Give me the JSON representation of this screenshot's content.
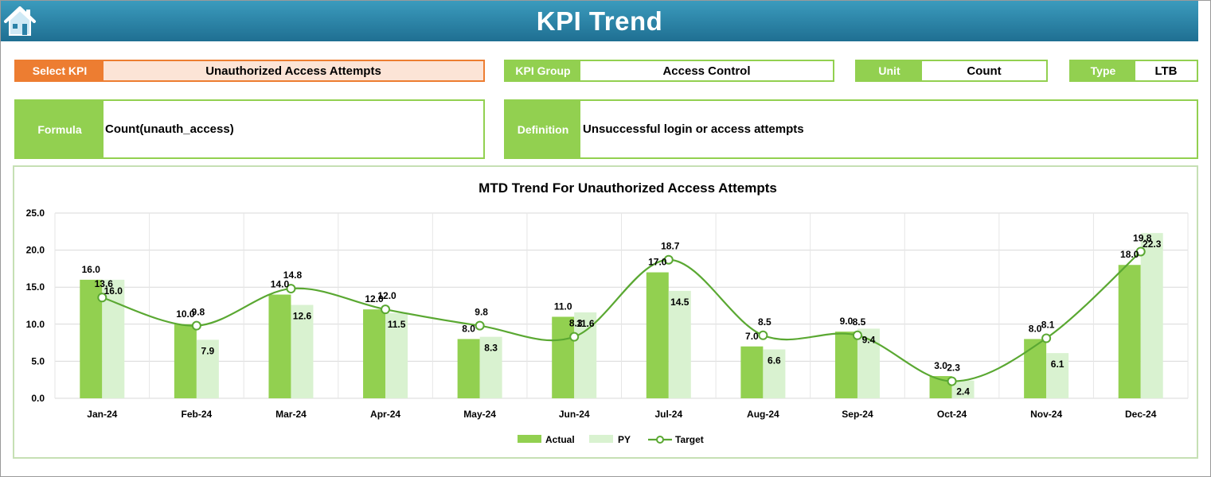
{
  "header": {
    "title": "KPI Trend",
    "home_icon": "home-icon"
  },
  "selectors": {
    "select_kpi_label": "Select KPI",
    "select_kpi_value": "Unauthorized Access Attempts",
    "kpi_group_label": "KPI Group",
    "kpi_group_value": "Access Control",
    "unit_label": "Unit",
    "unit_value": "Count",
    "type_label": "Type",
    "type_value": "LTB"
  },
  "formula": {
    "label": "Formula",
    "value": "Count(unauth_access)"
  },
  "definition": {
    "label": "Definition",
    "value": "Unsuccessful login or access attempts"
  },
  "colors": {
    "actual": "#92d050",
    "py": "#d9f2d0",
    "target": "#5aa832",
    "kpi_accent": "#ed7d31",
    "header": "#2a82a8"
  },
  "chart_data": {
    "type": "bar",
    "title": "MTD Trend For Unauthorized Access Attempts",
    "categories": [
      "Jan-24",
      "Feb-24",
      "Mar-24",
      "Apr-24",
      "May-24",
      "Jun-24",
      "Jul-24",
      "Aug-24",
      "Sep-24",
      "Oct-24",
      "Nov-24",
      "Dec-24"
    ],
    "series": [
      {
        "name": "Actual",
        "type": "bar",
        "values": [
          16.0,
          10.0,
          14.0,
          12.0,
          8.0,
          11.0,
          17.0,
          7.0,
          9.0,
          3.0,
          8.0,
          18.0
        ]
      },
      {
        "name": "PY",
        "type": "bar",
        "values": [
          16.0,
          7.9,
          12.6,
          11.5,
          8.3,
          11.6,
          14.5,
          6.6,
          9.4,
          2.4,
          6.1,
          22.3
        ]
      },
      {
        "name": "Target",
        "type": "line",
        "smooth": true,
        "values": [
          13.6,
          9.8,
          14.8,
          12.0,
          9.8,
          8.3,
          18.7,
          8.5,
          8.5,
          2.3,
          8.1,
          19.8
        ]
      }
    ],
    "y_ticks": [
      "0.0",
      "5.0",
      "10.0",
      "15.0",
      "20.0",
      "25.0"
    ],
    "ylim": [
      0,
      25
    ],
    "grid": true,
    "legend_position": "bottom"
  }
}
